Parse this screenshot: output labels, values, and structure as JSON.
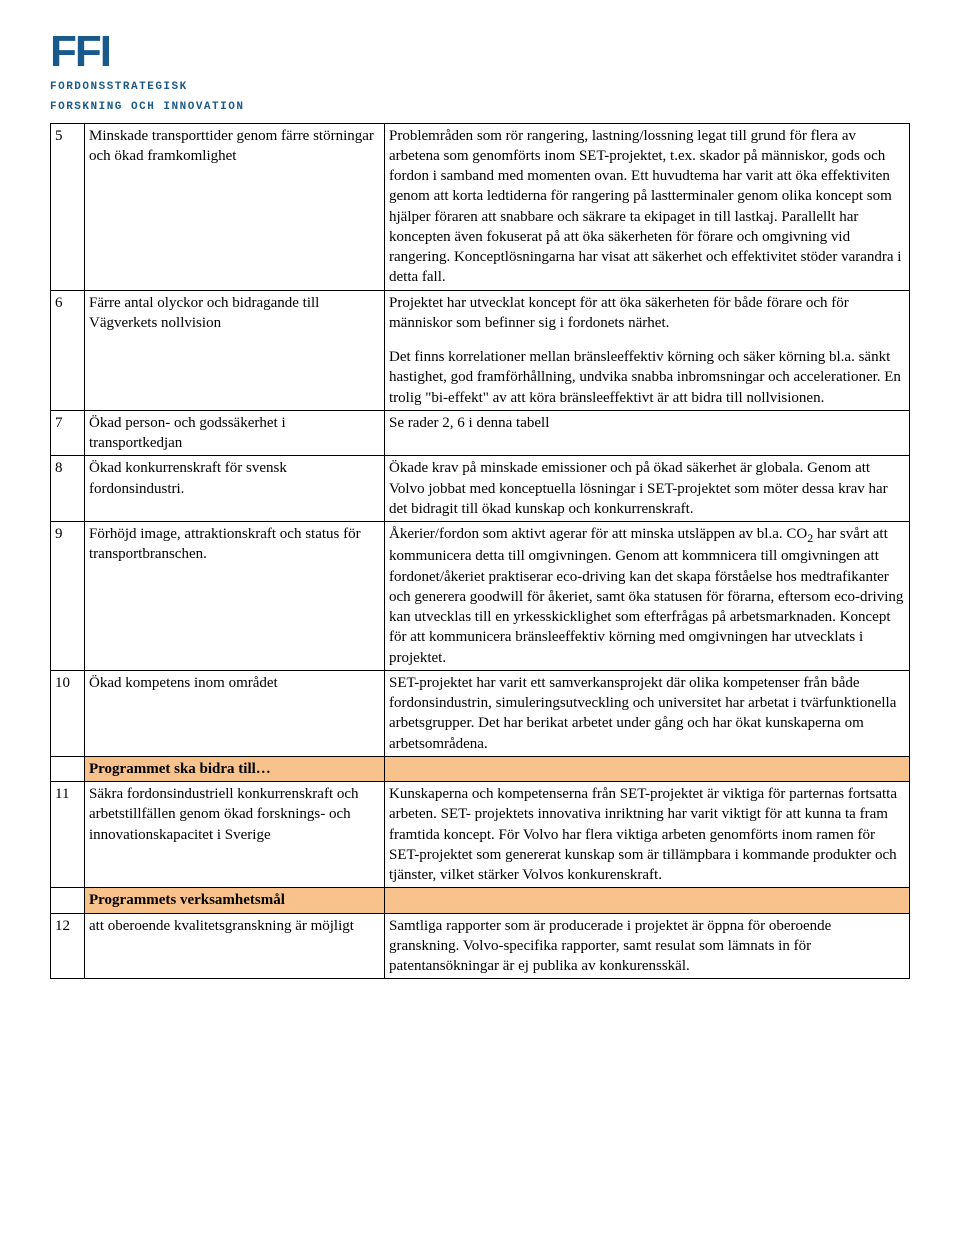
{
  "logo": {
    "title": "FFI",
    "sub1": "Fordonsstrategisk",
    "sub2": "Forskning och Innovation",
    "color": "#1a5a8a"
  },
  "section_headers": {
    "s1": "Programmet ska bidra till…",
    "s2": "Programmets verksamhetsmål"
  },
  "rows": {
    "r5": {
      "n": "5",
      "left": "Minskade transporttider genom färre störningar och ökad framkomlighet",
      "right": "Problemråden som rör rangering, lastning/lossning legat till grund för flera av arbetena som genomförts inom SET-projektet, t.ex. skador på människor, gods och fordon i samband med momenten ovan. Ett huvudtema har varit att öka effektiviten genom att korta ledtiderna för rangering på lastterminaler genom olika koncept som hjälper föraren att snabbare och säkrare ta ekipaget in till lastkaj. Parallellt har koncepten även fokuserat på att  öka säkerheten för förare och omgivning vid rangering. Konceptlösningarna har visat att säkerhet och effektivitet stöder varandra i detta fall."
    },
    "r6": {
      "n": "6",
      "left": "Färre antal olyckor och bidragande till Vägverkets nollvision",
      "right_p1": "Projektet har utvecklat koncept för att öka säkerheten för både förare och för människor som befinner sig i fordonets närhet.",
      "right_p2": "Det finns korrelationer mellan bränsleeffektiv körning och säker körning bl.a. sänkt hastighet, god framförhållning, undvika snabba inbromsningar och accelerationer. En trolig \"bi-effekt\" av att köra bränsleeffektivt är att bidra till nollvisionen."
    },
    "r7": {
      "n": "7",
      "left": "Ökad person- och godssäkerhet i transportkedjan",
      "right": "Se rader 2, 6 i denna tabell"
    },
    "r8": {
      "n": "8",
      "left": "Ökad konkurrenskraft för svensk fordonsindustri.",
      "right": "Ökade krav på minskade emissioner och på ökad säkerhet är globala. Genom att Volvo jobbat med konceptuella lösningar i SET-projektet som möter dessa krav har det bidragit till ökad kunskap och konkurrenskraft."
    },
    "r9": {
      "n": "9",
      "left": "Förhöjd image, attraktionskraft och status för transportbranschen.",
      "right_pre": "Åkerier/fordon som aktivt agerar för att minska utsläppen av bl.a. CO",
      "right_sub": "2",
      "right_post": " har svårt att kommunicera detta till omgivningen. Genom att kommnicera till omgivningen att fordonet/åkeriet praktiserar eco-driving kan det skapa förståelse hos medtrafikanter och generera goodwill för åkeriet, samt öka statusen för förarna, eftersom eco-driving kan utvecklas till en yrkesskicklighet som efterfrågas på arbetsmarknaden. Koncept för att kommunicera bränsleeffektiv körning med omgivningen har utvecklats i projektet."
    },
    "r10": {
      "n": "10",
      "left": "Ökad kompetens inom området",
      "right": "SET-projektet har varit ett samverkansprojekt där olika kompetenser från både fordonsindustrin, simuleringsutveckling och universitet har arbetat  i tvärfunktionella arbetsgrupper. Det har berikat arbetet under gång och har ökat kunskaperna om arbetsområdena."
    },
    "r11": {
      "n": "11",
      "left": "Säkra fordonsindustriell konkurrenskraft och arbetstillfällen genom ökad forsknings- och innovationskapacitet i Sverige",
      "right": "Kunskaperna och kompetenserna från SET-projektet är viktiga för parternas fortsatta arbeten. SET- projektets innovativa inriktning har varit viktigt för att kunna ta fram framtida koncept. För Volvo har flera viktiga arbeten genomförts inom ramen för SET-projektet som genererat kunskap som är tillämpbara i kommande produkter och tjänster, vilket stärker Volvos konkurenskraft."
    },
    "r12": {
      "n": "12",
      "left": "att oberoende kvalitetsgranskning är möjligt",
      "right": "Samtliga rapporter som är producerade i projektet är öppna för oberoende granskning. Volvo-specifika rapporter, samt resulat som lämnats in för patentansökningar är ej publika av konkurensskäl."
    }
  },
  "colors": {
    "header_bg": "#f8c28c",
    "border": "#000000",
    "text": "#000000",
    "background": "#ffffff"
  }
}
